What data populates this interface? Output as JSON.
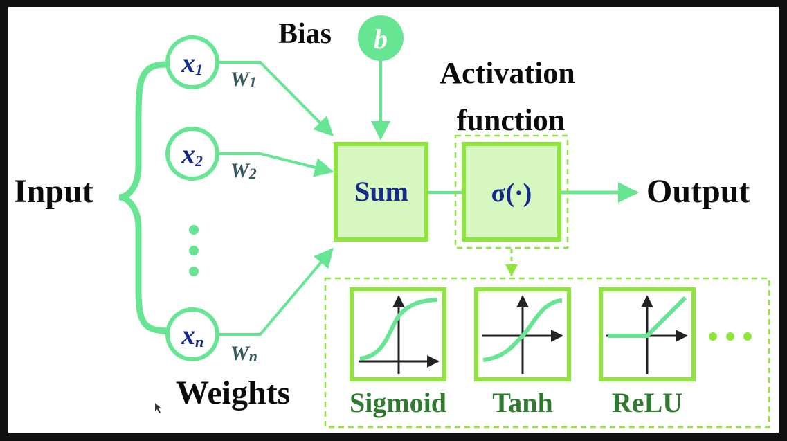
{
  "colors": {
    "frame": "#111111",
    "panel": "#ffffff",
    "green": "#66e592",
    "bright_green": "#8ee63a",
    "light_fill": "#d6f7c0",
    "dark_green": "#2f7a2f",
    "navy": "#132a8a",
    "slate": "#35575f",
    "text": "#0b0b0b"
  },
  "labels": {
    "bias": "Bias",
    "bias_symbol": "b",
    "activation_line1": "Activation",
    "activation_line2": "function",
    "input": "Input",
    "output": "Output",
    "weights": "Weights",
    "sum": "Sum",
    "sigma": "σ(·)",
    "ellipsis": "⋮",
    "more": "···"
  },
  "inputs": [
    {
      "base": "x",
      "sub": "1"
    },
    {
      "base": "x",
      "sub": "2"
    },
    {
      "base": "x",
      "sub": "n"
    }
  ],
  "weights": [
    {
      "base": "W",
      "sub": "1"
    },
    {
      "base": "W",
      "sub": "2"
    },
    {
      "base": "W",
      "sub": "n"
    }
  ],
  "activations": [
    {
      "name": "Sigmoid",
      "icon": "sigmoid-curve-icon"
    },
    {
      "name": "Tanh",
      "icon": "tanh-curve-icon"
    },
    {
      "name": "ReLU",
      "icon": "relu-curve-icon"
    }
  ]
}
